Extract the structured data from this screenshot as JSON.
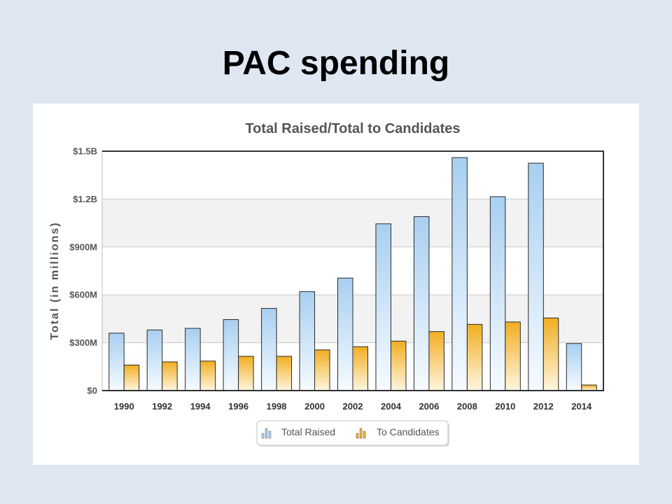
{
  "slide": {
    "title": "PAC spending",
    "background": "#dee7f2",
    "title_color": "#000000"
  },
  "chart_data": {
    "type": "bar",
    "title": "Total Raised/Total to Candidates",
    "xlabel": "",
    "ylabel": "Total (in millions)",
    "categories": [
      "1990",
      "1992",
      "1994",
      "1996",
      "1998",
      "2000",
      "2002",
      "2004",
      "2006",
      "2008",
      "2010",
      "2012",
      "2014"
    ],
    "series": [
      {
        "name": "Total Raised",
        "values": [
          360,
          380,
          390,
          445,
          515,
          620,
          705,
          1045,
          1090,
          1460,
          1215,
          1425,
          295
        ],
        "color": "#a8cff0",
        "color_bottom": "#f6fbff"
      },
      {
        "name": "To Candidates",
        "values": [
          160,
          180,
          185,
          215,
          215,
          255,
          275,
          310,
          370,
          415,
          430,
          455,
          35
        ],
        "color": "#f1ae22",
        "color_bottom": "#fef6e0"
      }
    ],
    "ytick_values": [
      0,
      300,
      600,
      900,
      1200,
      1500
    ],
    "ytick_labels": [
      "$0",
      "$300M",
      "$600M",
      "$900M",
      "$1.2B",
      "$1.5B"
    ],
    "ylim": [
      0,
      1500
    ],
    "grid": true,
    "legend": "bottom-center",
    "legend_icon": "bar-chart-icon"
  }
}
